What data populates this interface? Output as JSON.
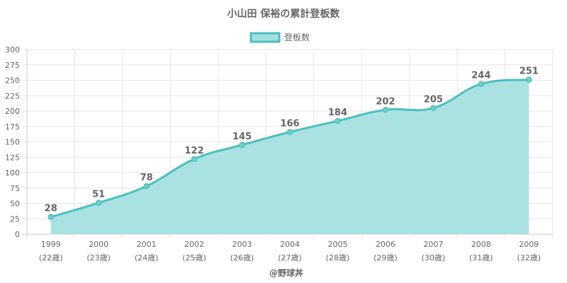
{
  "chart_data": {
    "type": "area",
    "title": "小山田 保裕の累計登板数",
    "credit": "@野球丼",
    "legend": {
      "position": "top",
      "entries": [
        "登板数"
      ]
    },
    "colors": {
      "line": "#4bbfbf",
      "fill": "#a5e0e0",
      "point": "#6fcfcf"
    },
    "grid": true,
    "ylim": [
      0,
      300
    ],
    "yticks": [
      0,
      25,
      50,
      75,
      100,
      125,
      150,
      175,
      200,
      225,
      250,
      275,
      300
    ],
    "categories": [
      "1999",
      "2000",
      "2001",
      "2002",
      "2003",
      "2004",
      "2005",
      "2006",
      "2007",
      "2008",
      "2009"
    ],
    "sublabels": [
      "(22歳)",
      "(23歳)",
      "(24歳)",
      "(25歳)",
      "(26歳)",
      "(27歳)",
      "(28歳)",
      "(29歳)",
      "(30歳)",
      "(31歳)",
      "(32歳)"
    ],
    "series": [
      {
        "name": "登板数",
        "values": [
          28,
          51,
          78,
          122,
          145,
          166,
          184,
          202,
          205,
          244,
          251
        ]
      }
    ]
  }
}
